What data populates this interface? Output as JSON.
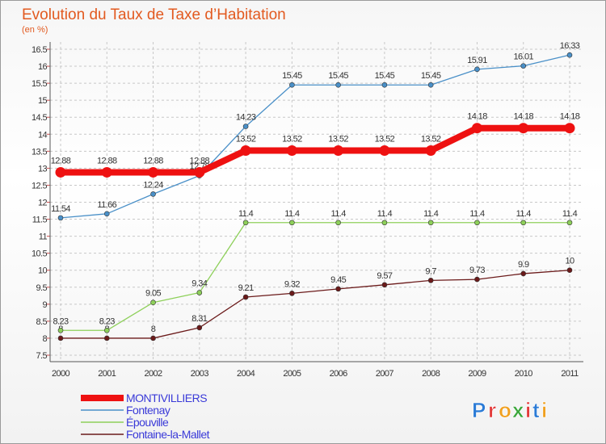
{
  "chart_data": {
    "type": "line",
    "title": "Evolution du Taux de Taxe d’Habitation",
    "subtitle": "(en %)",
    "x": [
      "2000",
      "2001",
      "2002",
      "2003",
      "2004",
      "2005",
      "2006",
      "2007",
      "2008",
      "2009",
      "2010",
      "2011"
    ],
    "ylim": [
      7.5,
      16.5
    ],
    "yticks": [
      "7.5",
      "8",
      "8.5",
      "9",
      "9.5",
      "10",
      "10.5",
      "11",
      "11.5",
      "12",
      "12.5",
      "13",
      "13.5",
      "14",
      "14.5",
      "15",
      "15.5",
      "16",
      "16.5"
    ],
    "grid": true,
    "legend_position": "bottom-left",
    "series": [
      {
        "name": "Fontaine-la-Mallet",
        "color": "#6b1a1a",
        "values": [
          8,
          8,
          8,
          8.31,
          9.21,
          9.32,
          9.45,
          9.57,
          9.7,
          9.73,
          9.9,
          10
        ],
        "labels": [
          "8",
          "8",
          "8",
          "8.31",
          "9.21",
          "9.32",
          "9.45",
          "9.57",
          "9.7",
          "9.73",
          "9.9",
          "10"
        ]
      },
      {
        "name": "Épouville",
        "color": "#8ed05a",
        "values": [
          8.23,
          8.23,
          9.05,
          9.34,
          11.4,
          11.4,
          11.4,
          11.4,
          11.4,
          11.4,
          11.4,
          11.4
        ],
        "labels": [
          "8.23",
          "8.23",
          "9.05",
          "9.34",
          "11.4",
          "11.4",
          "11.4",
          "11.4",
          "11.4",
          "11.4",
          "11.4",
          "11.4"
        ]
      },
      {
        "name": "Fontenay",
        "color": "#4a90c8",
        "values": [
          11.54,
          11.66,
          12.24,
          12.78,
          14.23,
          15.45,
          15.45,
          15.45,
          15.45,
          15.91,
          16.01,
          16.33
        ],
        "labels": [
          "11.54",
          "11.66",
          "12.24",
          "12.78",
          "14.23",
          "15.45",
          "15.45",
          "15.45",
          "15.45",
          "15.91",
          "16.01",
          "16.33"
        ]
      },
      {
        "name": "MONTIVILLIERS",
        "color": "#ee1111",
        "values": [
          12.88,
          12.88,
          12.88,
          12.88,
          13.52,
          13.52,
          13.52,
          13.52,
          13.52,
          14.18,
          14.18,
          14.18
        ],
        "labels": [
          "12.88",
          "12.88",
          "12.88",
          "12.88",
          "13.52",
          "13.52",
          "13.52",
          "13.52",
          "13.52",
          "14.18",
          "14.18",
          "14.18"
        ]
      }
    ],
    "legend": [
      {
        "name": "MONTIVILLIERS",
        "color": "#ee1111"
      },
      {
        "name": "Fontenay",
        "color": "#4a90c8"
      },
      {
        "name": "Épouville",
        "color": "#8ed05a"
      },
      {
        "name": "Fontaine-la-Mallet",
        "color": "#6b1a1a"
      }
    ]
  },
  "logo": {
    "letters": [
      "P",
      "r",
      "o",
      "x",
      "i",
      "t",
      "i"
    ],
    "colors": [
      "#2b7bd6",
      "#e23a3a",
      "#f0a020",
      "#3aa63a",
      "#e23a3a",
      "#2b7bd6",
      "#f0a020"
    ]
  }
}
